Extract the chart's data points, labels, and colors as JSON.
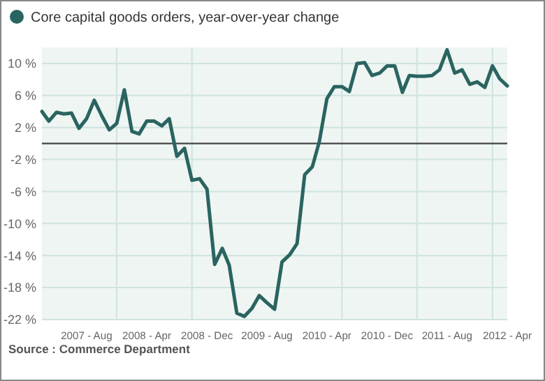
{
  "chart_data": {
    "type": "line",
    "legend": "top left",
    "grid": true,
    "x": [
      "2007-02",
      "2007-03",
      "2007-04",
      "2007-05",
      "2007-06",
      "2007-07",
      "2007-08",
      "2007-09",
      "2007-10",
      "2007-11",
      "2007-12",
      "2008-01",
      "2008-02",
      "2008-03",
      "2008-04",
      "2008-05",
      "2008-06",
      "2008-07",
      "2008-08",
      "2008-09",
      "2008-10",
      "2008-11",
      "2008-12",
      "2009-01",
      "2009-02",
      "2009-03",
      "2009-04",
      "2009-05",
      "2009-06",
      "2009-07",
      "2009-08",
      "2009-09",
      "2009-10",
      "2009-11",
      "2009-12",
      "2010-01",
      "2010-02",
      "2010-03",
      "2010-04",
      "2010-05",
      "2010-06",
      "2010-07",
      "2010-08",
      "2010-09",
      "2010-10",
      "2010-11",
      "2010-12",
      "2011-01",
      "2011-02",
      "2011-03",
      "2011-04",
      "2011-05",
      "2011-06",
      "2011-07",
      "2011-08",
      "2011-09",
      "2011-10",
      "2011-11",
      "2011-12",
      "2012-01",
      "2012-02",
      "2012-03",
      "2012-04"
    ],
    "series": [
      {
        "name": "Core capital goods orders, year-over-year change",
        "color": "#2a6460",
        "values": [
          4.0,
          2.8,
          3.9,
          3.7,
          3.8,
          1.9,
          3.1,
          5.4,
          3.5,
          1.7,
          2.5,
          6.7,
          1.5,
          1.2,
          2.8,
          2.8,
          2.2,
          3.1,
          -1.6,
          -0.6,
          -4.6,
          -4.4,
          -5.7,
          -15.1,
          -13.1,
          -15.2,
          -21.2,
          -21.6,
          -20.6,
          -19.0,
          -19.9,
          -20.7,
          -14.8,
          -13.9,
          -12.5,
          -3.9,
          -2.9,
          0.2,
          5.6,
          7.1,
          7.1,
          6.5,
          10.0,
          10.1,
          8.5,
          8.8,
          9.7,
          9.7,
          6.4,
          8.5,
          8.4,
          8.4,
          8.5,
          9.2,
          11.7,
          8.8,
          9.2,
          7.4,
          7.7,
          7.0,
          9.7,
          8.1,
          7.2
        ]
      }
    ],
    "xlim": [
      "2007-02",
      "2012-04"
    ],
    "xticks": [
      {
        "value": "2007-08",
        "label": "2007 - Aug"
      },
      {
        "value": "2007-12",
        "label": null
      },
      {
        "value": "2008-04",
        "label": "2008 - Apr"
      },
      {
        "value": "2008-10",
        "label": null
      },
      {
        "value": "2008-12",
        "label": "2008 - Dec"
      },
      {
        "value": "2009-08",
        "label": "2009 - Aug"
      },
      {
        "value": "2010-04",
        "label": "2010 - Apr"
      },
      {
        "value": "2010-06",
        "label": null
      },
      {
        "value": "2010-12",
        "label": "2010 - Dec"
      },
      {
        "value": "2011-04",
        "label": null
      },
      {
        "value": "2011-08",
        "label": "2011 - Aug"
      },
      {
        "value": "2012-02",
        "label": null
      },
      {
        "value": "2012-04",
        "label": "2012 - Apr"
      }
    ],
    "ylim": [
      -22,
      12
    ],
    "yticks": [
      {
        "value": -22,
        "label": "-22 %"
      },
      {
        "value": -18,
        "label": "-18 %"
      },
      {
        "value": -14,
        "label": "-14 %"
      },
      {
        "value": -10,
        "label": "-10 %"
      },
      {
        "value": -6,
        "label": "-6 %"
      },
      {
        "value": -2,
        "label": "-2 %"
      },
      {
        "value": 2,
        "label": "2 %"
      },
      {
        "value": 6,
        "label": "6 %"
      },
      {
        "value": 10,
        "label": "10 %"
      }
    ],
    "ref_lines": [
      {
        "axis": "y",
        "value": 0,
        "color": "#444444"
      }
    ],
    "annotations": [
      "Source : Commerce Department"
    ]
  }
}
